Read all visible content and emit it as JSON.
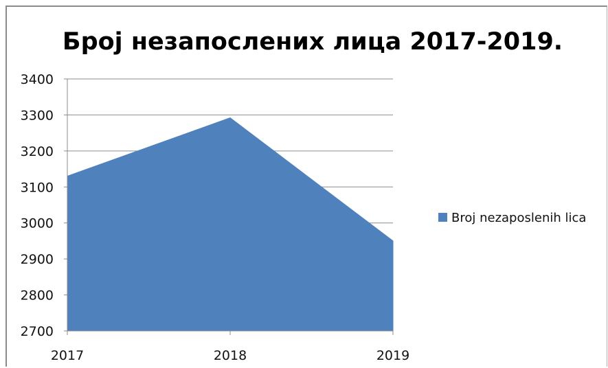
{
  "chart_data": {
    "type": "area",
    "title": "Број незапослених лица 2017-2019.",
    "xlabel": "",
    "ylabel": "",
    "categories": [
      "2017",
      "2018",
      "2019"
    ],
    "series": [
      {
        "name": "Broj nezaposlenih lica",
        "values": [
          3130,
          3292,
          2950
        ],
        "color": "#4f81bd"
      }
    ],
    "ylim": [
      2700,
      3400
    ],
    "yticks": [
      2700,
      2800,
      2900,
      3000,
      3100,
      3200,
      3300,
      3400
    ],
    "grid": true,
    "legend_position": "right"
  }
}
